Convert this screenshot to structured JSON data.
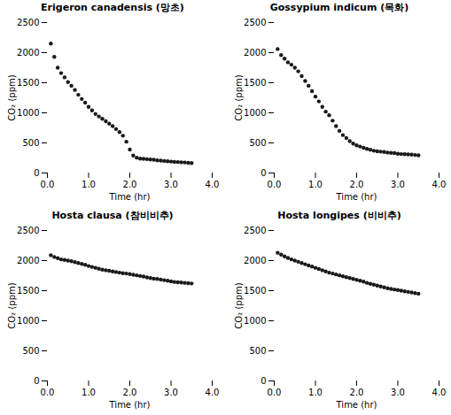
{
  "chart_data": [
    {
      "type": "scatter",
      "title": "Erigeron canadensis (망초)",
      "xlabel": "Time (hr)",
      "ylabel": "CO₂ (ppm)",
      "x": [
        0.083,
        0.167,
        0.25,
        0.333,
        0.417,
        0.5,
        0.583,
        0.667,
        0.75,
        0.833,
        0.917,
        1.0,
        1.083,
        1.167,
        1.25,
        1.333,
        1.417,
        1.5,
        1.583,
        1.667,
        1.75,
        1.833,
        1.917,
        2.0,
        2.083,
        2.167,
        2.25,
        2.333,
        2.417,
        2.5,
        2.583,
        2.667,
        2.75,
        2.833,
        2.917,
        3.0,
        3.083,
        3.167,
        3.25,
        3.333,
        3.417,
        3.5
      ],
      "values": [
        2150,
        1930,
        1750,
        1660,
        1590,
        1510,
        1450,
        1380,
        1300,
        1230,
        1170,
        1100,
        1040,
        980,
        940,
        900,
        860,
        820,
        780,
        730,
        680,
        620,
        520,
        390,
        290,
        255,
        240,
        235,
        230,
        225,
        220,
        210,
        205,
        200,
        195,
        190,
        185,
        182,
        178,
        175,
        170,
        165
      ],
      "xlim": [
        0,
        4.0
      ],
      "ylim": [
        0,
        2500
      ],
      "xticks": [
        {
          "value": 0.0,
          "label": "0.0"
        },
        {
          "value": 1.0,
          "label": "1.0"
        },
        {
          "value": 2.0,
          "label": "2.0"
        },
        {
          "value": 3.0,
          "label": "3.0"
        },
        {
          "value": 4.0,
          "label": "4.0"
        }
      ],
      "yticks": [
        0,
        500,
        1000,
        1500,
        2000,
        2500
      ],
      "color": "#1a1a1a",
      "marker": "circle"
    },
    {
      "type": "scatter",
      "title": "Gossypium indicum (목화)",
      "xlabel": "Time (hr)",
      "ylabel": "CO₂ (ppm)",
      "x": [
        0.083,
        0.167,
        0.25,
        0.333,
        0.417,
        0.5,
        0.583,
        0.667,
        0.75,
        0.833,
        0.917,
        1.0,
        1.083,
        1.167,
        1.25,
        1.333,
        1.417,
        1.5,
        1.583,
        1.667,
        1.75,
        1.833,
        1.917,
        2.0,
        2.083,
        2.167,
        2.25,
        2.333,
        2.417,
        2.5,
        2.583,
        2.667,
        2.75,
        2.833,
        2.917,
        3.0,
        3.083,
        3.167,
        3.25,
        3.333,
        3.417,
        3.5
      ],
      "values": [
        2060,
        1960,
        1900,
        1840,
        1800,
        1750,
        1690,
        1610,
        1530,
        1450,
        1360,
        1270,
        1190,
        1100,
        1020,
        960,
        870,
        780,
        700,
        630,
        580,
        530,
        490,
        460,
        440,
        420,
        400,
        385,
        370,
        360,
        355,
        350,
        340,
        335,
        330,
        320,
        315,
        312,
        308,
        305,
        300,
        295
      ],
      "xlim": [
        0,
        4.0
      ],
      "ylim": [
        0,
        2500
      ],
      "xticks": [
        {
          "value": 0.0,
          "label": "0.0"
        },
        {
          "value": 1.0,
          "label": "1.0"
        },
        {
          "value": 2.0,
          "label": "2.0"
        },
        {
          "value": 3.0,
          "label": "3.0"
        },
        {
          "value": 4.0,
          "label": "4.0"
        }
      ],
      "yticks": [
        0,
        500,
        1000,
        1500,
        2000,
        2500
      ],
      "color": "#1a1a1a",
      "marker": "circle"
    },
    {
      "type": "scatter",
      "title": "Hosta clausa (참비비추)",
      "xlabel": "Time (hr)",
      "ylabel": "CO₂ (ppm)",
      "x": [
        0.083,
        0.167,
        0.25,
        0.333,
        0.417,
        0.5,
        0.583,
        0.667,
        0.75,
        0.833,
        0.917,
        1.0,
        1.083,
        1.167,
        1.25,
        1.333,
        1.417,
        1.5,
        1.583,
        1.667,
        1.75,
        1.833,
        1.917,
        2.0,
        2.083,
        2.167,
        2.25,
        2.333,
        2.417,
        2.5,
        2.583,
        2.667,
        2.75,
        2.833,
        2.917,
        3.0,
        3.083,
        3.167,
        3.25,
        3.333,
        3.417,
        3.5
      ],
      "values": [
        2090,
        2060,
        2040,
        2020,
        2010,
        2000,
        1990,
        1975,
        1960,
        1945,
        1930,
        1910,
        1895,
        1880,
        1865,
        1850,
        1840,
        1830,
        1820,
        1810,
        1800,
        1790,
        1785,
        1775,
        1765,
        1755,
        1745,
        1735,
        1720,
        1710,
        1700,
        1695,
        1685,
        1675,
        1665,
        1655,
        1645,
        1640,
        1635,
        1630,
        1625,
        1620
      ],
      "xlim": [
        0,
        4.0
      ],
      "ylim": [
        0,
        2500
      ],
      "xticks": [
        {
          "value": 0.0,
          "label": "0.0"
        },
        {
          "value": 1.0,
          "label": "1.0"
        },
        {
          "value": 2.0,
          "label": "2.0"
        },
        {
          "value": 3.0,
          "label": "3.0"
        },
        {
          "value": 4.0,
          "label": "4.0"
        }
      ],
      "yticks": [
        0,
        500,
        1000,
        1500,
        2000,
        2500
      ],
      "color": "#1a1a1a",
      "marker": "circle"
    },
    {
      "type": "scatter",
      "title": "Hosta longipes (비비추)",
      "xlabel": "Time (hr)",
      "ylabel": "CO₂ (ppm)",
      "x": [
        0.083,
        0.167,
        0.25,
        0.333,
        0.417,
        0.5,
        0.583,
        0.667,
        0.75,
        0.833,
        0.917,
        1.0,
        1.083,
        1.167,
        1.25,
        1.333,
        1.417,
        1.5,
        1.583,
        1.667,
        1.75,
        1.833,
        1.917,
        2.0,
        2.083,
        2.167,
        2.25,
        2.333,
        2.417,
        2.5,
        2.583,
        2.667,
        2.75,
        2.833,
        2.917,
        3.0,
        3.083,
        3.167,
        3.25,
        3.333,
        3.417,
        3.5
      ],
      "values": [
        2130,
        2100,
        2070,
        2045,
        2020,
        2000,
        1980,
        1960,
        1940,
        1920,
        1900,
        1880,
        1860,
        1840,
        1820,
        1800,
        1785,
        1770,
        1755,
        1740,
        1725,
        1710,
        1695,
        1680,
        1665,
        1650,
        1630,
        1615,
        1600,
        1585,
        1570,
        1555,
        1540,
        1530,
        1520,
        1510,
        1500,
        1490,
        1480,
        1470,
        1460,
        1450
      ],
      "xlim": [
        0,
        4.0
      ],
      "ylim": [
        0,
        2500
      ],
      "xticks": [
        {
          "value": 0.0,
          "label": "0.0"
        },
        {
          "value": 1.0,
          "label": "1.0"
        },
        {
          "value": 2.0,
          "label": "2.0"
        },
        {
          "value": 3.0,
          "label": "3.0"
        },
        {
          "value": 4.0,
          "label": "4.0"
        }
      ],
      "yticks": [
        0,
        500,
        1000,
        1500,
        2000,
        2500
      ],
      "color": "#1a1a1a",
      "marker": "circle"
    }
  ]
}
